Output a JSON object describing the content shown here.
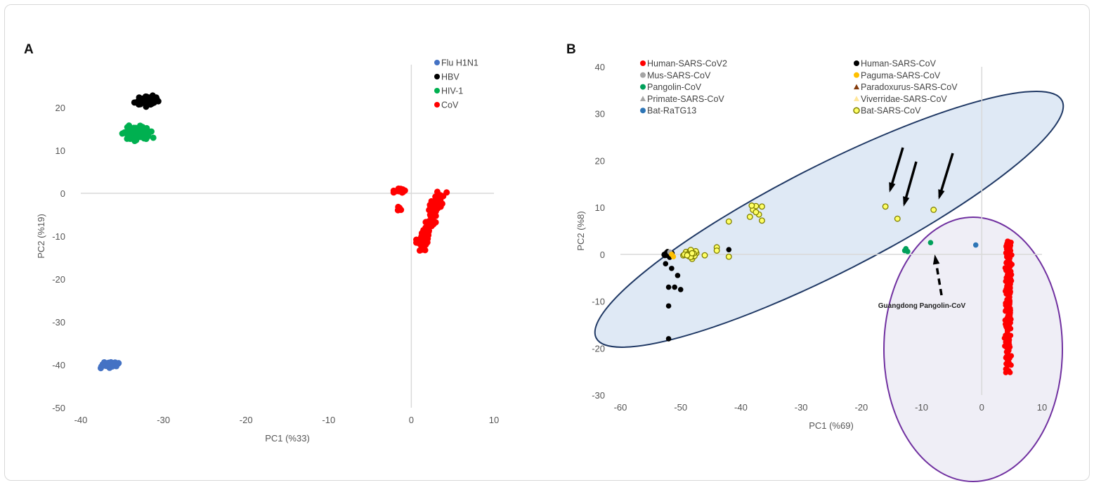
{
  "chart_data": [
    {
      "panel": "A",
      "type": "scatter",
      "xlabel": "PC1 (%33)",
      "ylabel": "PC2 (%19)",
      "xlim": [
        -40,
        10
      ],
      "ylim": [
        -50,
        30
      ],
      "xticks": [
        -40,
        -30,
        -20,
        -10,
        0,
        10
      ],
      "yticks": [
        -50,
        -40,
        -30,
        -20,
        -10,
        0,
        10,
        20
      ],
      "grid": false,
      "legend_position": "top-right",
      "series": [
        {
          "name": "Flu H1N1",
          "color": "#4472c4",
          "marker": "circle",
          "clusters": [
            {
              "center": [
                -36.5,
                -40
              ],
              "spread": [
                1.3,
                0.9
              ],
              "n": 45
            }
          ]
        },
        {
          "name": "HBV",
          "color": "#000000",
          "marker": "circle",
          "clusters": [
            {
              "center": [
                -32,
                21.5
              ],
              "spread": [
                2,
                1.6
              ],
              "n": 70
            }
          ]
        },
        {
          "name": "HIV-1",
          "color": "#00b050",
          "marker": "circle",
          "clusters": [
            {
              "center": [
                -33,
                14
              ],
              "spread": [
                2.3,
                2.3
              ],
              "n": 80
            }
          ]
        },
        {
          "name": "CoV",
          "color": "#ff0000",
          "marker": "circle",
          "clusters": [
            {
              "center": [
                -1.5,
                0.6
              ],
              "spread": [
                1.2,
                0.8
              ],
              "n": 20
            },
            {
              "center": [
                -1.5,
                -3.5
              ],
              "spread": [
                0.4,
                1
              ],
              "n": 5
            },
            {
              "line": [
                [
                  3.5,
                  0
                ],
                [
                  1,
                  -13
                ]
              ],
              "spread": [
                1,
                1.2
              ],
              "n": 110
            }
          ]
        }
      ]
    },
    {
      "panel": "B",
      "type": "scatter",
      "xlabel": "PC1 (%69)",
      "ylabel": "PC2 (%8)",
      "xlim": [
        -60,
        10
      ],
      "ylim": [
        -30,
        40
      ],
      "xticks": [
        -60,
        -50,
        -40,
        -30,
        -20,
        -10,
        0,
        10
      ],
      "yticks": [
        -30,
        -20,
        -10,
        0,
        10,
        20,
        30,
        40
      ],
      "grid": false,
      "legend_position": "top-left",
      "annotation": "Guangdong Pangolin-CoV",
      "series": [
        {
          "name": "Human-SARS-CoV2",
          "color": "#ff0000",
          "marker": "circle",
          "clusters": [
            {
              "line": [
                [
                  4.5,
                  3
                ],
                [
                  4.3,
                  -25
                ]
              ],
              "spread": [
                0.7,
                0.5
              ],
              "n": 260
            }
          ]
        },
        {
          "name": "Human-SARS-CoV",
          "color": "#000000",
          "marker": "circle",
          "points": [
            [
              -52,
              -7
            ],
            [
              -51,
              -7
            ],
            [
              -52,
              -11
            ],
            [
              -52,
              -18
            ],
            [
              -50,
              -7.5
            ],
            [
              -51.5,
              -3
            ],
            [
              -42,
              1
            ],
            [
              -50.5,
              -4.5
            ],
            [
              -52.5,
              -2
            ]
          ],
          "clusters": [
            {
              "center": [
                -52,
                0
              ],
              "spread": [
                1,
                1
              ],
              "n": 25
            }
          ]
        },
        {
          "name": "Mus-SARS-CoV",
          "color": "#a5a5a5",
          "marker": "circle",
          "points": [
            [
              -51.8,
              0.5
            ]
          ]
        },
        {
          "name": "Paguma-SARS-CoV",
          "color": "#ffc000",
          "marker": "circle",
          "points": [
            [
              -51.5,
              0
            ],
            [
              -51.2,
              -0.5
            ]
          ]
        },
        {
          "name": "Pangolin-CoV",
          "color": "#00a05a",
          "marker": "circle",
          "points": [
            [
              -12.8,
              0.8
            ],
            [
              -12.3,
              0.6
            ],
            [
              -12.6,
              1.2
            ],
            [
              -8.5,
              2.5
            ]
          ]
        },
        {
          "name": "Paradoxurus-SARS-CoV",
          "color": "#843c0c",
          "marker": "triangle",
          "points": []
        },
        {
          "name": "Primate-SARS-CoV",
          "color": "#a5a5a5",
          "marker": "triangle",
          "points": []
        },
        {
          "name": "Viverridae-SARS-CoV",
          "color": "#ffe699",
          "marker": "triangle",
          "points": []
        },
        {
          "name": "Bat-RaTG13",
          "color": "#2e75b6",
          "marker": "circle",
          "points": [
            [
              -1,
              2
            ]
          ]
        },
        {
          "name": "Bat-SARS-CoV",
          "color": "#ffff66",
          "stroke": "#7f7f00",
          "marker": "ring",
          "points": [
            [
              -16,
              10.2
            ],
            [
              -14,
              7.6
            ],
            [
              -8,
              9.5
            ],
            [
              -42,
              7
            ],
            [
              -42,
              -0.5
            ],
            [
              -44,
              1.5
            ],
            [
              -44,
              0.8
            ],
            [
              -46,
              -0.2
            ],
            [
              -38,
              9.5
            ],
            [
              -37.5,
              10.3
            ],
            [
              -36.5,
              10.2
            ],
            [
              -38.5,
              8
            ],
            [
              -37,
              8.5
            ],
            [
              -36.5,
              7.2
            ],
            [
              -37.5,
              9
            ],
            [
              -38.2,
              10.4
            ]
          ],
          "clusters": [
            {
              "center": [
                -48.5,
                0
              ],
              "spread": [
                1.8,
                1.4
              ],
              "n": 22
            }
          ]
        }
      ]
    }
  ],
  "panels": {
    "a_label": "A",
    "b_label": "B"
  }
}
